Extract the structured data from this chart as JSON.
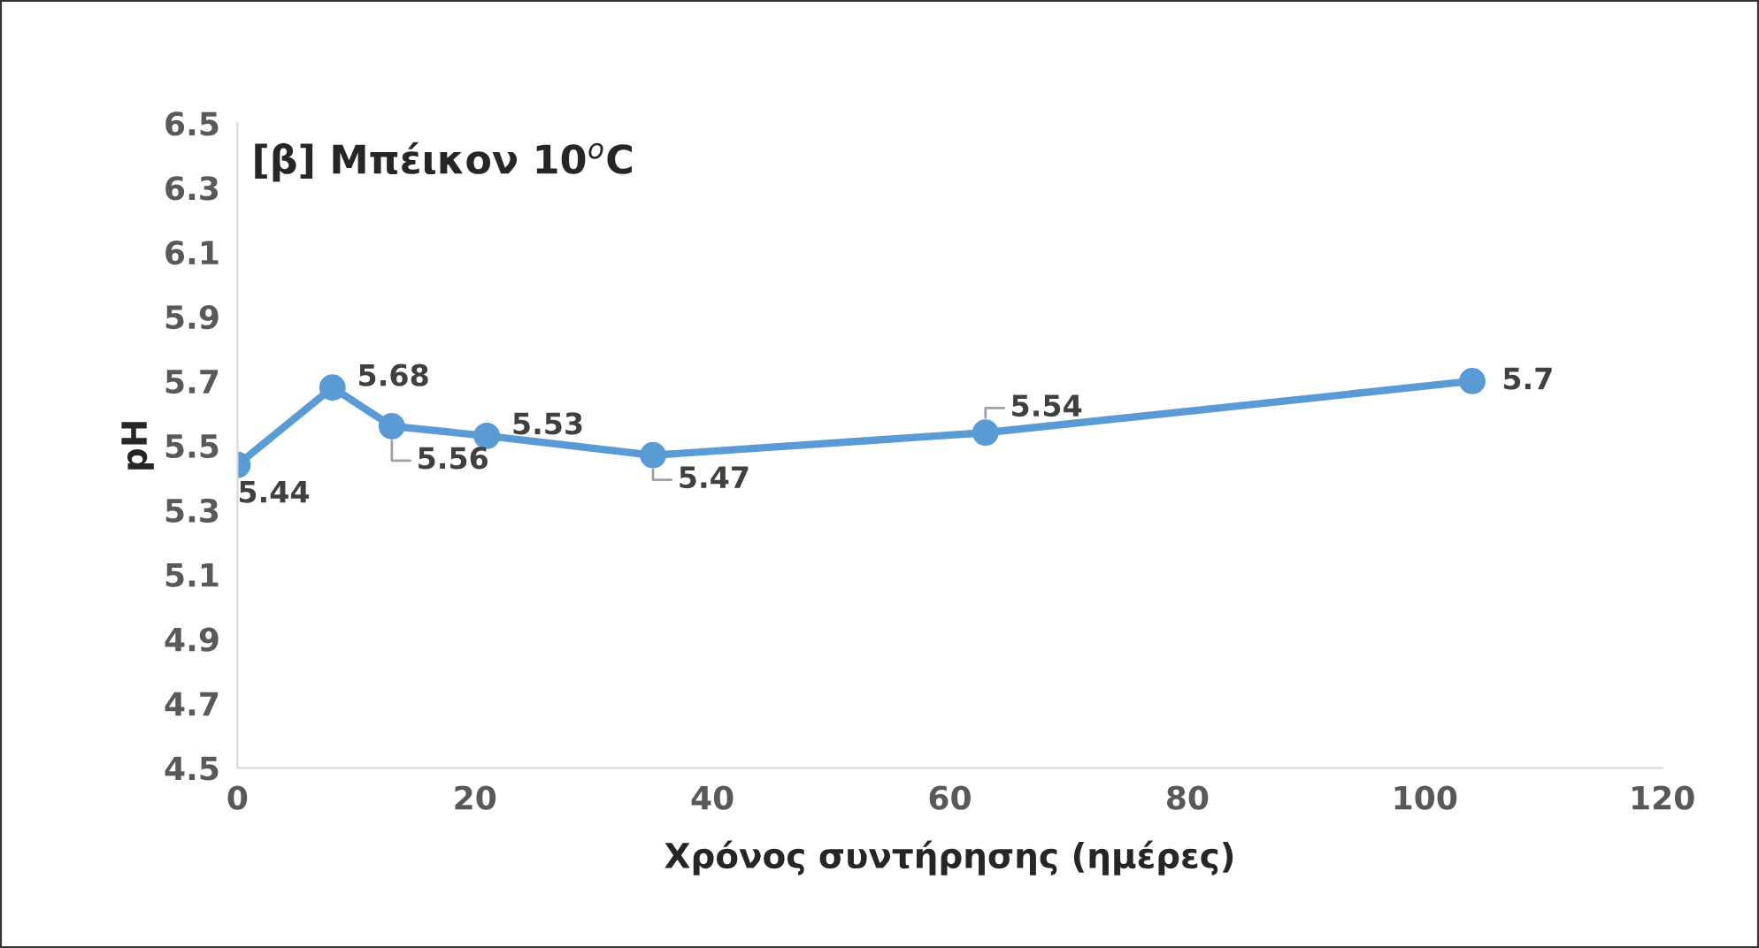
{
  "chart_data": {
    "type": "line",
    "title": "[β] Μπέικον 10$^{o}$C",
    "xlabel": "Χρόνος συντήρησης (ημέρες)",
    "ylabel": "pH",
    "x": [
      0,
      8,
      13,
      21,
      35,
      63,
      104
    ],
    "series": [
      {
        "color": "#5b9bd5",
        "values": [
          5.44,
          5.68,
          5.56,
          5.53,
          5.47,
          5.54,
          5.7
        ]
      }
    ],
    "xlim": [
      0,
      120
    ],
    "xticks": [
      0,
      20,
      40,
      60,
      80,
      100,
      120
    ],
    "ylim": [
      4.5,
      6.5
    ],
    "yticks": [
      4.5,
      4.7,
      4.9,
      5.1,
      5.3,
      5.5,
      5.7,
      5.9,
      6.1,
      6.3,
      6.5
    ],
    "grid": false,
    "legend": false,
    "marker": "circle",
    "line_style": "solid",
    "data_labels": true
  }
}
